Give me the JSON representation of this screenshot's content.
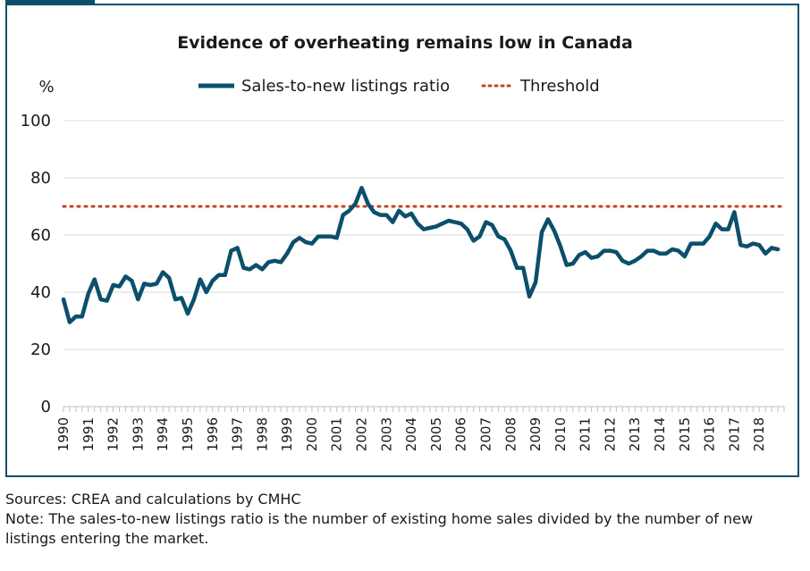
{
  "chart_data": {
    "type": "line",
    "title": "Evidence of overheating remains low in Canada",
    "ylabel": "%",
    "xlabel": "",
    "ylim": [
      0,
      100
    ],
    "yticks": [
      0,
      20,
      40,
      60,
      80,
      100
    ],
    "xlim": [
      1990,
      2019
    ],
    "xticks": [
      "1990",
      "1991",
      "1992",
      "1993",
      "1994",
      "1995",
      "1996",
      "1997",
      "1998",
      "1999",
      "2000",
      "2001",
      "2002",
      "2003",
      "2004",
      "2005",
      "2006",
      "2007",
      "2008",
      "2009",
      "2010",
      "2011",
      "2012",
      "2013",
      "2014",
      "2015",
      "2016",
      "2017",
      "2018"
    ],
    "grid": true,
    "legend_position": "top",
    "colors": {
      "series": "#0b4f6c",
      "threshold": "#c0461f",
      "grid": "#d9d9d9",
      "frame": "#0b4f6c"
    },
    "series": [
      {
        "name": "Sales-to-new listings ratio",
        "style": "solid",
        "x": [
          1990.0,
          1990.25,
          1990.5,
          1990.75,
          1991.0,
          1991.25,
          1991.5,
          1991.75,
          1992.0,
          1992.25,
          1992.5,
          1992.75,
          1993.0,
          1993.25,
          1993.5,
          1993.75,
          1994.0,
          1994.25,
          1994.5,
          1994.75,
          1995.0,
          1995.25,
          1995.5,
          1995.75,
          1996.0,
          1996.25,
          1996.5,
          1996.75,
          1997.0,
          1997.25,
          1997.5,
          1997.75,
          1998.0,
          1998.25,
          1998.5,
          1998.75,
          1999.0,
          1999.25,
          1999.5,
          1999.75,
          2000.0,
          2000.25,
          2000.5,
          2000.75,
          2001.0,
          2001.25,
          2001.5,
          2001.75,
          2002.0,
          2002.25,
          2002.5,
          2002.75,
          2003.0,
          2003.25,
          2003.5,
          2003.75,
          2004.0,
          2004.25,
          2004.5,
          2004.75,
          2005.0,
          2005.25,
          2005.5,
          2005.75,
          2006.0,
          2006.25,
          2006.5,
          2006.75,
          2007.0,
          2007.25,
          2007.5,
          2007.75,
          2008.0,
          2008.25,
          2008.5,
          2008.75,
          2009.0,
          2009.25,
          2009.5,
          2009.75,
          2010.0,
          2010.25,
          2010.5,
          2010.75,
          2011.0,
          2011.25,
          2011.5,
          2011.75,
          2012.0,
          2012.25,
          2012.5,
          2012.75,
          2013.0,
          2013.25,
          2013.5,
          2013.75,
          2014.0,
          2014.25,
          2014.5,
          2014.75,
          2015.0,
          2015.25,
          2015.5,
          2015.75,
          2016.0,
          2016.25,
          2016.5,
          2016.75,
          2017.0,
          2017.25,
          2017.5,
          2017.75,
          2018.0,
          2018.25,
          2018.5,
          2018.75
        ],
        "values": [
          37.5,
          29.5,
          31.5,
          31.5,
          39.5,
          44.5,
          37.5,
          37,
          42.5,
          42,
          45.5,
          44,
          37.5,
          43,
          42.5,
          43,
          47,
          45,
          37.5,
          38,
          32.5,
          37.5,
          44.5,
          40,
          44,
          46,
          46,
          54.5,
          55.5,
          48.5,
          48,
          49.5,
          48,
          50.5,
          51,
          50.5,
          53.5,
          57.5,
          59,
          57.5,
          57,
          59.5,
          59.5,
          59.5,
          59,
          67,
          68.5,
          71,
          76.5,
          71,
          68,
          67,
          67,
          64.5,
          68.5,
          66.5,
          67.5,
          64,
          62,
          62.5,
          63,
          64,
          65,
          64.5,
          64,
          62,
          58,
          59.5,
          64.5,
          63.5,
          59.5,
          58.5,
          54.5,
          48.5,
          48.5,
          38.5,
          43.5,
          61,
          65.5,
          61.5,
          56,
          49.5,
          50,
          53,
          54,
          52,
          52.5,
          54.5,
          54.5,
          54,
          51,
          50,
          51,
          52.5,
          54.5,
          54.5,
          53.5,
          53.5,
          55,
          54.5,
          52.5,
          57,
          57,
          57,
          59.5,
          64,
          62,
          62,
          68,
          56.5,
          56,
          57,
          56.5,
          53.5,
          55.5,
          55
        ]
      },
      {
        "name": "Threshold",
        "style": "dotted",
        "x": [
          1990.0,
          2018.75
        ],
        "values": [
          70,
          70
        ]
      }
    ]
  },
  "notes": {
    "sources": "Sources: CREA and calculations by CMHC",
    "note": "Note: The sales-to-new listings ratio is the number of existing home sales divided by the number of new listings entering the market."
  }
}
